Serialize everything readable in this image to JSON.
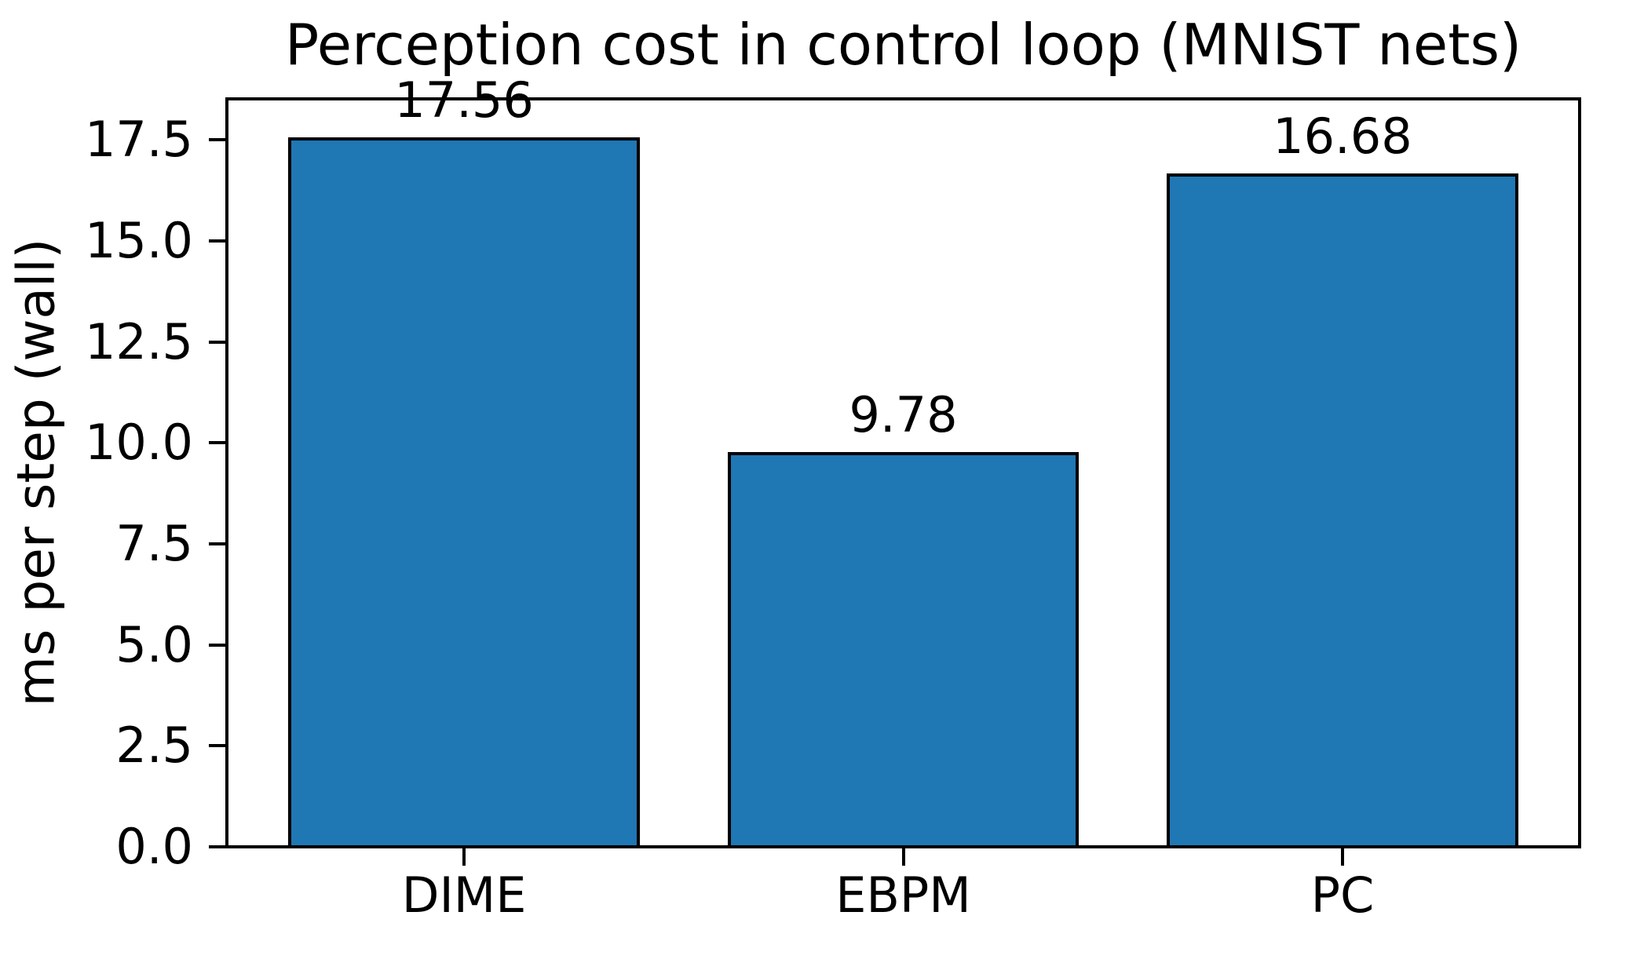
{
  "chart_data": {
    "type": "bar",
    "title": "Perception cost in control loop (MNIST nets)",
    "xlabel": "",
    "ylabel": "ms per step (wall)",
    "categories": [
      "DIME",
      "EBPM",
      "PC"
    ],
    "values": [
      17.56,
      9.78,
      16.68
    ],
    "bar_labels": [
      "17.56",
      "9.78",
      "16.68"
    ],
    "yticks": [
      0,
      2.5,
      5,
      7.5,
      10,
      12.5,
      15,
      17.5
    ],
    "ytick_labels": [
      "0.0",
      "2.5",
      "5.0",
      "7.5",
      "10.0",
      "12.5",
      "15.0",
      "17.5"
    ],
    "ylim": [
      0,
      18.52
    ],
    "grid": false,
    "legend": false,
    "bar_color": "#1f77b4",
    "bar_edge_color": "#000000",
    "background_color": "#ffffff",
    "text_color": "#000000"
  }
}
